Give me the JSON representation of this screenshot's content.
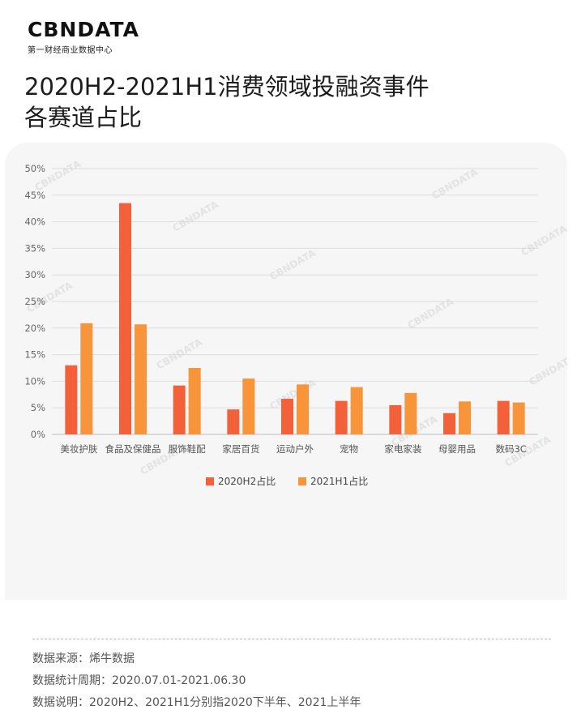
{
  "logo": {
    "name": "CBNDATA",
    "subtitle": "第一财经商业数据中心"
  },
  "title_line1": "2020H2-2021H1消费领域投融资事件",
  "title_line2": "各赛道占比",
  "watermark": "CBNDATA",
  "colors": {
    "series1": "#f2613a",
    "series2": "#f8943a",
    "grid": "#dcdcdc",
    "axis_text": "#666666"
  },
  "chart_data": {
    "type": "bar",
    "title": "2020H2-2021H1消费领域投融资事件各赛道占比",
    "categories": [
      "美妆护肤",
      "食品及保健品",
      "服饰鞋配",
      "家居百货",
      "运动户外",
      "宠物",
      "家电家装",
      "母婴用品",
      "数码3C"
    ],
    "series": [
      {
        "name": "2020H2占比",
        "values": [
          13.0,
          43.5,
          9.2,
          4.7,
          6.7,
          6.3,
          5.5,
          4.0,
          6.3
        ]
      },
      {
        "name": "2021H1占比",
        "values": [
          20.9,
          20.7,
          12.5,
          10.5,
          9.4,
          8.9,
          7.8,
          6.2,
          6.0
        ]
      }
    ],
    "ylim": [
      0,
      50
    ],
    "yticks": [
      "0%",
      "5%",
      "10%",
      "15%",
      "20%",
      "25%",
      "30%",
      "35%",
      "40%",
      "45%",
      "50%"
    ],
    "grid": true,
    "legend": "bottom-center"
  },
  "notes": {
    "source": "数据来源：烯牛数据",
    "period": "数据统计周期：2020.07.01-2021.06.30",
    "explain": "数据说明：2020H2、2021H1分别指2020下半年、2021上半年"
  }
}
